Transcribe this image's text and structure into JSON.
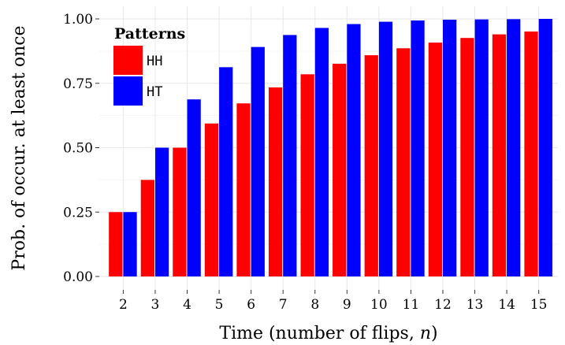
{
  "chart_data": {
    "type": "bar",
    "title": "",
    "xlabel": "Time (number of flips, ",
    "xlabel_var": "n",
    "xlabel_end": ")",
    "ylabel": "Prob. of occur. at least once",
    "categories": [
      "2",
      "3",
      "4",
      "5",
      "6",
      "7",
      "8",
      "9",
      "10",
      "11",
      "12",
      "13",
      "14",
      "15"
    ],
    "ylim": [
      0,
      1.0
    ],
    "yticks": [
      "0.00",
      "0.25",
      "0.50",
      "0.75",
      "1.00"
    ],
    "ytick_values": [
      0,
      0.25,
      0.5,
      0.75,
      1.0
    ],
    "grid": true,
    "legend": {
      "title": "Patterns",
      "placement": "top-left"
    },
    "series": [
      {
        "name": "HH",
        "color": "#ff0000",
        "values": [
          0.25,
          0.375,
          0.5,
          0.594,
          0.672,
          0.734,
          0.785,
          0.826,
          0.859,
          0.886,
          0.908,
          0.926,
          0.94,
          0.951
        ]
      },
      {
        "name": "HT",
        "color": "#0000ff",
        "values": [
          0.25,
          0.5,
          0.6875,
          0.8125,
          0.891,
          0.9375,
          0.965,
          0.98,
          0.989,
          0.994,
          0.997,
          0.998,
          0.999,
          1.0
        ]
      }
    ]
  },
  "colors": {
    "panel_background": "#ffffff",
    "grid": "#ebebeb"
  }
}
